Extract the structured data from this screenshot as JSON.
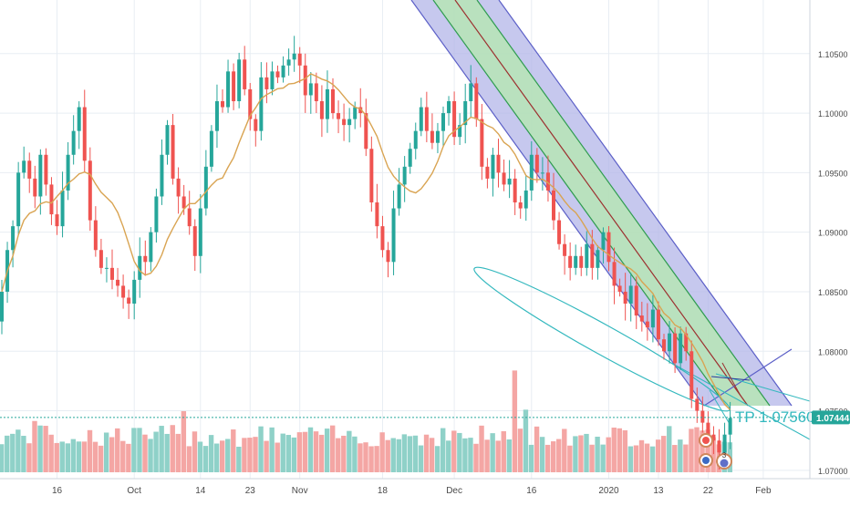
{
  "chart_data": {
    "type": "candlestick",
    "instrument": "",
    "y_axis": {
      "ticks": [
        "1.10500",
        "1.10000",
        "1.09500",
        "1.09000",
        "1.08500",
        "1.08000",
        "1.07500",
        "1.07000"
      ],
      "tick_values": [
        1.105,
        1.1,
        1.095,
        1.09,
        1.085,
        1.08,
        1.075,
        1.07
      ],
      "range": [
        1.0693,
        1.1095
      ],
      "position": "right"
    },
    "x_axis": {
      "ticks": [
        "16",
        "Oct",
        "14",
        "23",
        "Nov",
        "18",
        "Dec",
        "16",
        "2020",
        "13",
        "22",
        "Feb"
      ],
      "tick_bar_index": [
        10,
        24,
        36,
        45,
        54,
        69,
        82,
        96,
        110,
        119,
        128,
        138
      ]
    },
    "last_price": "1.07444",
    "last_price_value": 1.07444,
    "closes": [
      1.085,
      1.0885,
      1.0905,
      1.095,
      1.096,
      1.0945,
      1.093,
      1.0965,
      1.094,
      1.0915,
      1.0905,
      1.0935,
      1.0965,
      1.0985,
      1.1005,
      1.096,
      1.091,
      1.0885,
      1.087,
      1.087,
      1.086,
      1.0855,
      1.0845,
      1.084,
      1.086,
      1.088,
      1.0875,
      1.09,
      1.093,
      1.0965,
      1.099,
      1.0945,
      1.093,
      1.092,
      1.0905,
      1.088,
      1.092,
      1.0955,
      1.0985,
      1.101,
      1.1005,
      1.1035,
      1.101,
      1.1045,
      1.102,
      1.0995,
      1.0985,
      1.103,
      1.102,
      1.1035,
      1.103,
      1.104,
      1.1045,
      1.105,
      1.104,
      1.1015,
      1.1025,
      1.101,
      1.0995,
      1.102,
      1.1,
      1.0995,
      1.099,
      1.0995,
      1.1005,
      1.1,
      1.097,
      1.0925,
      1.0905,
      1.0885,
      1.0875,
      1.092,
      1.094,
      1.0955,
      1.097,
      1.0985,
      1.1005,
      1.0985,
      1.0975,
      1.0985,
      1.1,
      1.101,
      1.098,
      1.099,
      1.101,
      1.1025,
      1.0995,
      1.0955,
      1.0945,
      1.0965,
      1.095,
      1.094,
      1.0945,
      1.0925,
      1.092,
      1.0935,
      1.0965,
      1.095,
      1.095,
      1.0935,
      1.091,
      1.089,
      1.088,
      1.087,
      1.088,
      1.087,
      1.089,
      1.087,
      1.0885,
      1.09,
      1.0875,
      1.0855,
      1.085,
      1.084,
      1.0855,
      1.083,
      1.0825,
      1.082,
      1.0835,
      1.081,
      1.08,
      1.0815,
      1.079,
      1.0815,
      1.08,
      1.076,
      1.075,
      1.074,
      1.073,
      1.0725,
      1.0715,
      1.073,
      1.0744
    ],
    "moving_average": {
      "color": "#d9a452",
      "start": 1.0875,
      "end": 1.0765
    },
    "channel": {
      "outer_color": "#5b5fc7",
      "outer_fill": "#b3b6e8",
      "inner_color": "#2e9c4f",
      "inner_fill": "#b7e3b8",
      "center_color": "#9c2f2f"
    },
    "annotation": {
      "text": "TP 1.07560",
      "value": 1.0756,
      "color": "#33b8be"
    },
    "colors": {
      "up": "#26a69a",
      "down": "#ef5350",
      "vol_up": "#8fd1c8",
      "vol_down": "#f4a6a4",
      "grid": "#e8edf3",
      "axis_text": "#4a4a4a",
      "price_badge_bg": "#26a69a"
    },
    "event_markers": [
      {
        "label": "",
        "color": "#ef5350"
      },
      {
        "label": "3",
        "color": "#6070c8"
      }
    ]
  }
}
